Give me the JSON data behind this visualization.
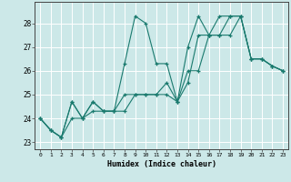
{
  "xlabel": "Humidex (Indice chaleur)",
  "background_color": "#cce8e8",
  "grid_color": "#ffffff",
  "line_color": "#1a7a6e",
  "xlim": [
    -0.5,
    23.5
  ],
  "ylim": [
    22.7,
    28.9
  ],
  "yticks": [
    23,
    24,
    25,
    26,
    27,
    28
  ],
  "xticks": [
    0,
    1,
    2,
    3,
    4,
    5,
    6,
    7,
    8,
    9,
    10,
    11,
    12,
    13,
    14,
    15,
    16,
    17,
    18,
    19,
    20,
    21,
    22,
    23
  ],
  "series": [
    [
      24.0,
      23.5,
      23.2,
      24.7,
      24.0,
      24.7,
      24.3,
      24.3,
      26.3,
      28.3,
      28.0,
      26.3,
      26.3,
      24.7,
      27.0,
      28.3,
      27.5,
      28.3,
      28.3,
      28.3,
      26.5,
      26.5,
      26.2,
      26.0
    ],
    [
      24.0,
      23.5,
      23.2,
      24.7,
      24.0,
      24.7,
      24.3,
      24.3,
      25.0,
      25.0,
      25.0,
      25.0,
      25.0,
      24.7,
      25.5,
      27.5,
      27.5,
      27.5,
      28.3,
      28.3,
      26.5,
      26.5,
      26.2,
      26.0
    ],
    [
      24.0,
      23.5,
      23.2,
      24.0,
      24.0,
      24.3,
      24.3,
      24.3,
      24.3,
      25.0,
      25.0,
      25.0,
      25.5,
      24.7,
      26.0,
      26.0,
      27.5,
      27.5,
      27.5,
      28.3,
      26.5,
      26.5,
      26.2,
      26.0
    ]
  ]
}
